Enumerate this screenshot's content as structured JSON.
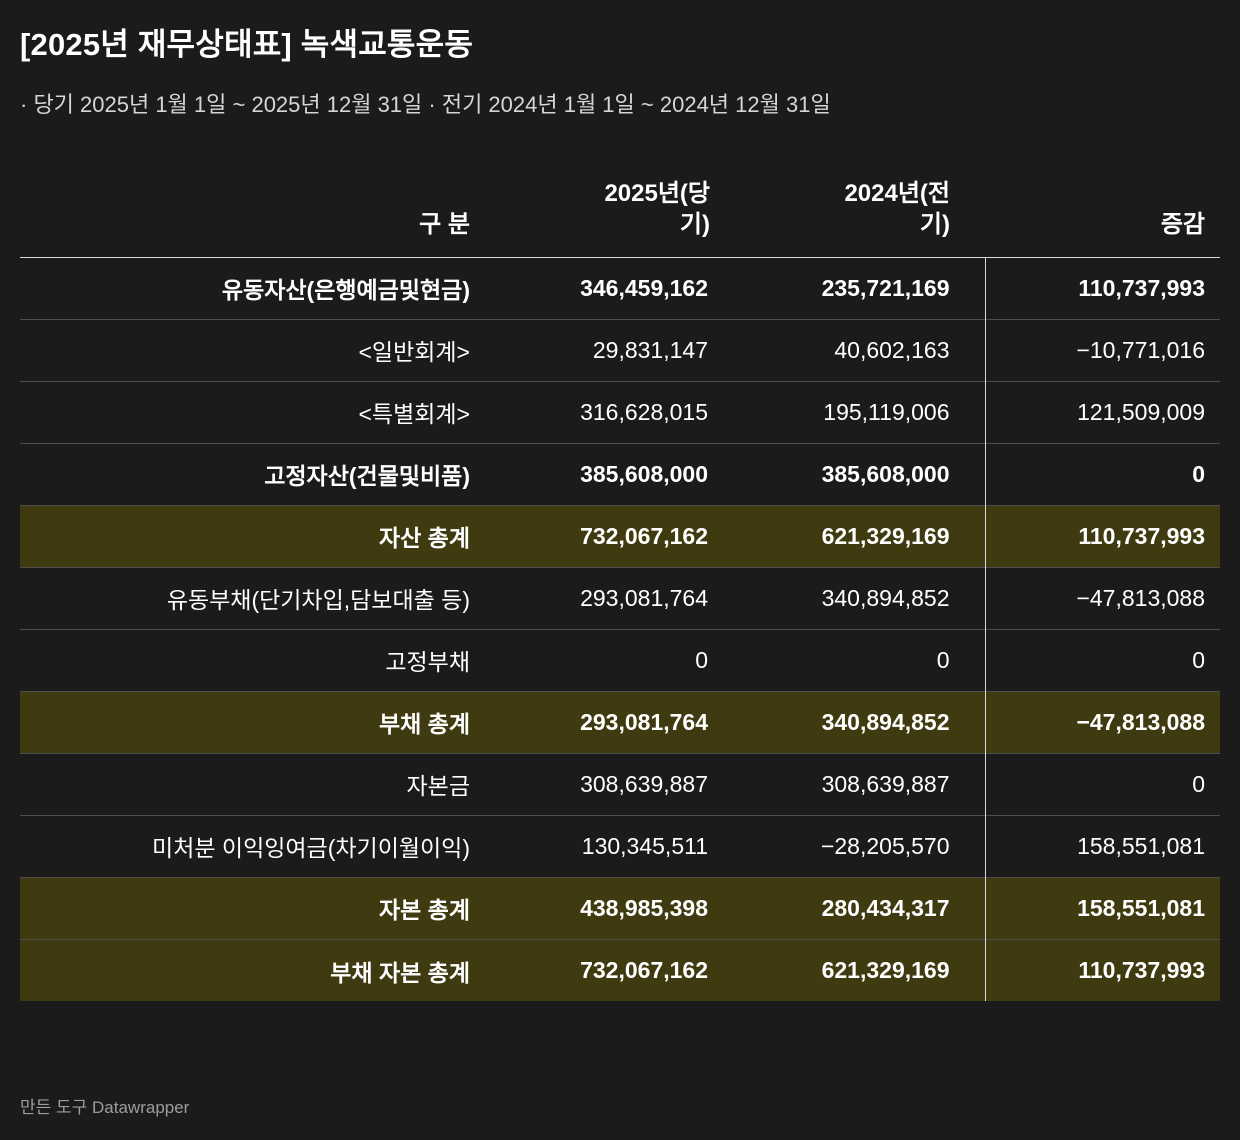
{
  "page": {
    "title": "[2025년 재무상태표] 녹색교통운동",
    "subtitle": "· 당기 2025년 1월 1일 ~ 2025년 12월 31일 · 전기 2024년 1월 1일 ~ 2024년 12월 31일",
    "attribution_prefix": "만든 도구 ",
    "attribution_tool": "Datawrapper"
  },
  "colors": {
    "background": "#1b1b1b",
    "text": "#ffffff",
    "subtitle_text": "#d6d6d6",
    "highlight_row": "#3f3a10",
    "row_divider": "#4e4e4e",
    "header_rule": "#d9d9d9",
    "column_rule": "#d9d9d9",
    "attribution_text": "#9d9d9d"
  },
  "chart_data": {
    "type": "table",
    "title": "[2025년 재무상태표] 녹색교통운동",
    "subtitle": "· 당기 2025년 1월 1일 ~ 2025년 12월 31일 · 전기 2024년 1월 1일 ~ 2024년 12월 31일",
    "columns": [
      "구 분",
      "2025년(당기)",
      "2024년(전기)",
      "증감"
    ],
    "rows": [
      {
        "label": "유동자산(은행예금및현금)",
        "y2025": "346,459,162",
        "y2024": "235,721,169",
        "diff": "110,737,993",
        "emphasis": "bold"
      },
      {
        "label": "<일반회계>",
        "y2025": "29,831,147",
        "y2024": "40,602,163",
        "diff": "−10,771,016",
        "emphasis": "normal"
      },
      {
        "label": "<특별회계>",
        "y2025": "316,628,015",
        "y2024": "195,119,006",
        "diff": "121,509,009",
        "emphasis": "normal"
      },
      {
        "label": "고정자산(건물및비품)",
        "y2025": "385,608,000",
        "y2024": "385,608,000",
        "diff": "0",
        "emphasis": "bold"
      },
      {
        "label": "자산 총계",
        "y2025": "732,067,162",
        "y2024": "621,329,169",
        "diff": "110,737,993",
        "emphasis": "total"
      },
      {
        "label": "유동부채(단기차입,담보대출 등)",
        "y2025": "293,081,764",
        "y2024": "340,894,852",
        "diff": "−47,813,088",
        "emphasis": "normal"
      },
      {
        "label": "고정부채",
        "y2025": "0",
        "y2024": "0",
        "diff": "0",
        "emphasis": "normal"
      },
      {
        "label": "부채 총계",
        "y2025": "293,081,764",
        "y2024": "340,894,852",
        "diff": "−47,813,088",
        "emphasis": "total"
      },
      {
        "label": "자본금",
        "y2025": "308,639,887",
        "y2024": "308,639,887",
        "diff": "0",
        "emphasis": "normal"
      },
      {
        "label": "미처분 이익잉여금(차기이월이익)",
        "y2025": "130,345,511",
        "y2024": "−28,205,570",
        "diff": "158,551,081",
        "emphasis": "normal"
      },
      {
        "label": "자본 총계",
        "y2025": "438,985,398",
        "y2024": "280,434,317",
        "diff": "158,551,081",
        "emphasis": "total"
      },
      {
        "label": "부채 자본 총계",
        "y2025": "732,067,162",
        "y2024": "621,329,169",
        "diff": "110,737,993",
        "emphasis": "total"
      }
    ]
  }
}
